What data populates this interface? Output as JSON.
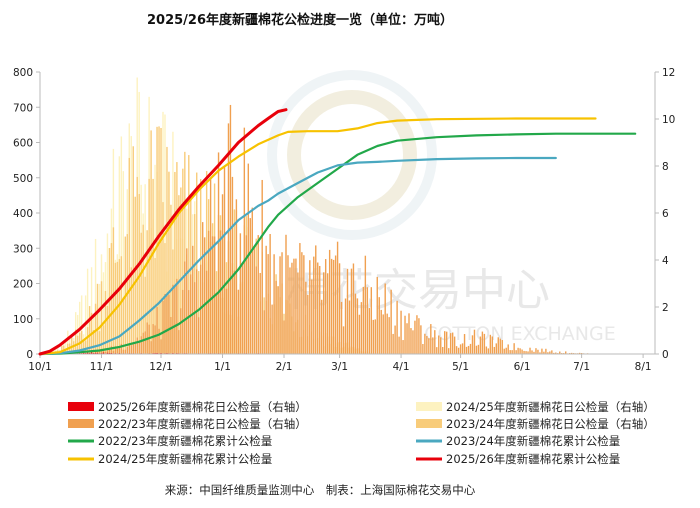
{
  "page": {
    "title": "2025/26年度新疆棉花公检进度一览（单位：万吨）",
    "source": "来源：中国纤维质量监测中心　制表：上海国际棉花交易中心",
    "watermark": {
      "cn": "棉花交易中心",
      "en": "COTTON EXCHANGE"
    }
  },
  "chart_data": {
    "type": "bar+line",
    "title": "2025/26年度新疆棉花公检进度一览（单位：万吨）",
    "x_ticks": [
      "10/1",
      "11/1",
      "12/1",
      "1/1",
      "2/1",
      "3/1",
      "4/1",
      "5/1",
      "6/1",
      "7/1",
      "8/1"
    ],
    "x_range_days": [
      0,
      310
    ],
    "left_axis": {
      "range": [
        0,
        800
      ],
      "ticks": [
        0,
        100,
        200,
        300,
        400,
        500,
        600,
        700,
        800
      ]
    },
    "right_axis": {
      "range": [
        0,
        12
      ],
      "ticks": [
        0,
        2,
        4,
        6,
        8,
        10,
        12
      ]
    },
    "grid": false,
    "legend_position": "bottom",
    "colors": {
      "daily_2526": "#e8000b",
      "daily_2425": "#fdf2c0",
      "daily_2223": "#f0a050",
      "daily_2324": "#f8cc7a",
      "cum_2223": "#22a84a",
      "cum_2324": "#4aa8c0",
      "cum_2425": "#f7c200",
      "cum_2526": "#e8000b"
    },
    "daily_series_right_axis": [
      {
        "key": "daily_2425",
        "name": "2024/25年度新疆棉花日公检量（右轴）",
        "points": [
          [
            2,
            0.02
          ],
          [
            10,
            0.3
          ],
          [
            18,
            1.2
          ],
          [
            26,
            3.0
          ],
          [
            32,
            4.5
          ],
          [
            38,
            6.3
          ],
          [
            44,
            7.6
          ],
          [
            50,
            8.0
          ],
          [
            56,
            7.8
          ],
          [
            62,
            7.2
          ],
          [
            68,
            6.2
          ],
          [
            74,
            5.2
          ],
          [
            80,
            4.0
          ],
          [
            86,
            2.8
          ],
          [
            92,
            1.8
          ],
          [
            98,
            1.0
          ],
          [
            104,
            0.5
          ],
          [
            110,
            0.1
          ],
          [
            118,
            0.0
          ]
        ]
      },
      {
        "key": "daily_2324",
        "name": "2023/24年度新疆棉花日公检量（右轴）",
        "points": [
          [
            5,
            0.0
          ],
          [
            15,
            0.4
          ],
          [
            25,
            1.5
          ],
          [
            35,
            3.8
          ],
          [
            45,
            5.8
          ],
          [
            55,
            6.8
          ],
          [
            62,
            7.1
          ],
          [
            70,
            6.4
          ],
          [
            80,
            5.6
          ],
          [
            90,
            4.8
          ],
          [
            100,
            4.2
          ],
          [
            110,
            3.5
          ],
          [
            120,
            2.6
          ],
          [
            130,
            1.8
          ],
          [
            140,
            1.0
          ],
          [
            150,
            0.5
          ],
          [
            160,
            0.2
          ],
          [
            170,
            0.0
          ]
        ]
      },
      {
        "key": "daily_2223",
        "name": "2022/23年度新疆棉花日公检量（右轴）",
        "points": [
          [
            5,
            0.0
          ],
          [
            20,
            0.05
          ],
          [
            35,
            0.2
          ],
          [
            48,
            0.6
          ],
          [
            60,
            1.4
          ],
          [
            70,
            2.6
          ],
          [
            78,
            3.8
          ],
          [
            86,
            5.3
          ],
          [
            92,
            6.6
          ],
          [
            98,
            7.3
          ],
          [
            104,
            6.8
          ],
          [
            110,
            5.6
          ],
          [
            118,
            4.1
          ],
          [
            128,
            3.3
          ],
          [
            140,
            3.2
          ],
          [
            150,
            3.2
          ],
          [
            160,
            3.0
          ],
          [
            170,
            2.5
          ],
          [
            180,
            1.8
          ],
          [
            190,
            1.2
          ],
          [
            200,
            0.8
          ],
          [
            210,
            0.6
          ],
          [
            220,
            0.7
          ],
          [
            230,
            0.5
          ],
          [
            240,
            0.3
          ],
          [
            250,
            0.2
          ],
          [
            260,
            0.1
          ],
          [
            270,
            0.05
          ],
          [
            280,
            0.0
          ]
        ]
      },
      {
        "key": "daily_2526",
        "name": "2025/26年度新疆棉花日公检量（右轴）",
        "points": [
          [
            2,
            0.0
          ],
          [
            14,
            0.03
          ],
          [
            28,
            0.05
          ],
          [
            44,
            0.02
          ],
          [
            60,
            0.03
          ],
          [
            80,
            0.02
          ],
          [
            95,
            0.02
          ],
          [
            110,
            0.02
          ],
          [
            114,
            0.0
          ]
        ]
      }
    ],
    "cumulative_series_left_axis": [
      {
        "key": "cum_2223",
        "name": "2022/23年度新疆棉花累计公检量",
        "points": [
          [
            0,
            0
          ],
          [
            10,
            1
          ],
          [
            20,
            5
          ],
          [
            30,
            10
          ],
          [
            40,
            20
          ],
          [
            50,
            35
          ],
          [
            60,
            55
          ],
          [
            70,
            85
          ],
          [
            80,
            125
          ],
          [
            90,
            175
          ],
          [
            100,
            240
          ],
          [
            110,
            320
          ],
          [
            115,
            360
          ],
          [
            120,
            395
          ],
          [
            125,
            420
          ],
          [
            130,
            445
          ],
          [
            140,
            485
          ],
          [
            150,
            525
          ],
          [
            160,
            565
          ],
          [
            170,
            590
          ],
          [
            180,
            605
          ],
          [
            200,
            615
          ],
          [
            220,
            620
          ],
          [
            240,
            623
          ],
          [
            260,
            625
          ],
          [
            290,
            625
          ],
          [
            300,
            625
          ]
        ]
      },
      {
        "key": "cum_2324",
        "name": "2023/24年度新疆棉花累计公检量",
        "points": [
          [
            0,
            0
          ],
          [
            10,
            2
          ],
          [
            20,
            10
          ],
          [
            30,
            25
          ],
          [
            40,
            50
          ],
          [
            50,
            95
          ],
          [
            60,
            145
          ],
          [
            70,
            205
          ],
          [
            80,
            265
          ],
          [
            90,
            320
          ],
          [
            100,
            380
          ],
          [
            110,
            420
          ],
          [
            115,
            435
          ],
          [
            120,
            455
          ],
          [
            130,
            485
          ],
          [
            140,
            515
          ],
          [
            150,
            535
          ],
          [
            160,
            543
          ],
          [
            170,
            545
          ],
          [
            180,
            548
          ],
          [
            200,
            553
          ],
          [
            220,
            555
          ],
          [
            240,
            556
          ],
          [
            255,
            556
          ],
          [
            260,
            556
          ]
        ]
      },
      {
        "key": "cum_2425",
        "name": "2024/25年度新疆棉花累计公检量",
        "points": [
          [
            0,
            0
          ],
          [
            10,
            5
          ],
          [
            20,
            30
          ],
          [
            30,
            75
          ],
          [
            40,
            140
          ],
          [
            50,
            220
          ],
          [
            60,
            315
          ],
          [
            70,
            400
          ],
          [
            80,
            465
          ],
          [
            90,
            520
          ],
          [
            100,
            560
          ],
          [
            110,
            595
          ],
          [
            120,
            620
          ],
          [
            125,
            630
          ],
          [
            135,
            632
          ],
          [
            150,
            632
          ],
          [
            160,
            640
          ],
          [
            170,
            655
          ],
          [
            180,
            662
          ],
          [
            200,
            666
          ],
          [
            240,
            668
          ],
          [
            270,
            668
          ],
          [
            280,
            668
          ]
        ]
      },
      {
        "key": "cum_2526",
        "name": "2025/26年度新疆棉花累计公检量",
        "points": [
          [
            0,
            0
          ],
          [
            5,
            8
          ],
          [
            10,
            25
          ],
          [
            20,
            70
          ],
          [
            30,
            125
          ],
          [
            40,
            185
          ],
          [
            50,
            255
          ],
          [
            60,
            335
          ],
          [
            70,
            410
          ],
          [
            80,
            475
          ],
          [
            90,
            535
          ],
          [
            100,
            600
          ],
          [
            110,
            648
          ],
          [
            115,
            668
          ],
          [
            120,
            688
          ],
          [
            124,
            693
          ]
        ]
      }
    ],
    "legend": [
      [
        "2025/26年度新疆棉花日公检量（右轴）",
        "2024/25年度新疆棉花日公检量（右轴）"
      ],
      [
        "2022/23年度新疆棉花日公检量（右轴）",
        "2023/24年度新疆棉花日公检量（右轴）"
      ],
      [
        "2022/23年度新疆棉花累计公检量",
        "2023/24年度新疆棉花累计公检量"
      ],
      [
        "2024/25年度新疆棉花累计公检量",
        "2025/26年度新疆棉花累计公检量"
      ]
    ],
    "legend_keys": [
      [
        "daily_2526",
        "daily_2425"
      ],
      [
        "daily_2223",
        "daily_2324"
      ],
      [
        "cum_2223",
        "cum_2324"
      ],
      [
        "cum_2425",
        "cum_2526"
      ]
    ],
    "legend_kinds": [
      [
        "bar",
        "bar"
      ],
      [
        "bar",
        "bar"
      ],
      [
        "line",
        "line"
      ],
      [
        "line",
        "line"
      ]
    ]
  }
}
